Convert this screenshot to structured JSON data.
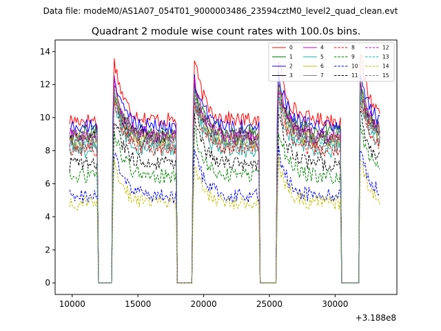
{
  "suptitle": "Data file: modeM0/AS1A07_054T01_9000003486_23594cztM0_level2_quad_clean.evt",
  "chart_data": {
    "type": "line",
    "title": "Quadrant 2 module wise count rates with 100.0s bins.",
    "xlabel": "",
    "ylabel": "",
    "x_offset_label": "+3.188e8",
    "xlim": [
      8700,
      34700
    ],
    "ylim": [
      -0.7,
      14.7
    ],
    "xticks": [
      10000,
      15000,
      20000,
      25000,
      30000
    ],
    "xtick_labels": [
      "10000",
      "15000",
      "20000",
      "25000",
      "30000"
    ],
    "yticks": [
      0,
      2,
      4,
      6,
      8,
      10,
      12,
      14
    ],
    "ytick_labels": [
      "0",
      "2",
      "4",
      "6",
      "8",
      "10",
      "12",
      "14"
    ],
    "x_start": 9800,
    "x_end": 33400,
    "bin_size": 100,
    "gaps": [
      [
        11950,
        13050
      ],
      [
        18000,
        19150
      ],
      [
        24250,
        25550
      ],
      [
        30450,
        31800
      ]
    ],
    "gap_rate": 0,
    "orbit_starts": [
      9800,
      13150,
      19250,
      25650,
      31900
    ],
    "legend_position": "upper right",
    "series": [
      {
        "name": "0",
        "color": "#ff0000",
        "style": "solid",
        "base": 9.85,
        "peak": 13.9
      },
      {
        "name": "1",
        "color": "#008000",
        "style": "solid",
        "base": 9.1,
        "peak": 12.3
      },
      {
        "name": "2",
        "color": "#0000ff",
        "style": "solid",
        "base": 9.45,
        "peak": 12.8
      },
      {
        "name": "3",
        "color": "#000000",
        "style": "solid",
        "base": 8.75,
        "peak": 11.9
      },
      {
        "name": "4",
        "color": "#bf00bf",
        "style": "solid",
        "base": 8.95,
        "peak": 12.4
      },
      {
        "name": "5",
        "color": "#20b2aa",
        "style": "solid",
        "base": 8.0,
        "peak": 11.2
      },
      {
        "name": "6",
        "color": "#bfbf00",
        "style": "solid",
        "base": 8.6,
        "peak": 11.8
      },
      {
        "name": "7",
        "color": "#808080",
        "style": "solid",
        "base": 8.3,
        "peak": 11.5
      },
      {
        "name": "8",
        "color": "#ff0000",
        "style": "dashed",
        "base": 8.1,
        "peak": 11.3
      },
      {
        "name": "9",
        "color": "#008000",
        "style": "dashed",
        "base": 6.45,
        "peak": 9.6
      },
      {
        "name": "10",
        "color": "#0000ff",
        "style": "dashed",
        "base": 5.25,
        "peak": 8.2
      },
      {
        "name": "11",
        "color": "#000000",
        "style": "dashed",
        "base": 7.2,
        "peak": 10.3
      },
      {
        "name": "12",
        "color": "#bf00bf",
        "style": "dashed",
        "base": 8.75,
        "peak": 11.9
      },
      {
        "name": "13",
        "color": "#20b2aa",
        "style": "dashed",
        "base": 8.5,
        "peak": 11.6
      },
      {
        "name": "14",
        "color": "#bfbf00",
        "style": "dashed",
        "base": 4.85,
        "peak": 7.6
      },
      {
        "name": "15",
        "color": "#808080",
        "style": "dashed",
        "base": 8.9,
        "peak": 12.0
      }
    ]
  }
}
